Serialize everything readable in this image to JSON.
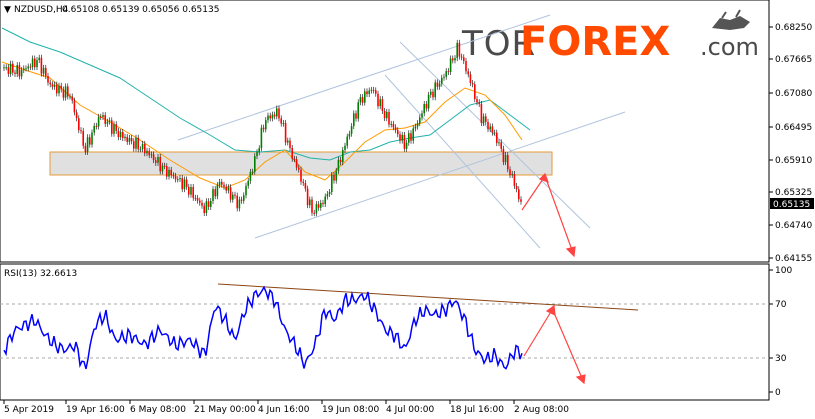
{
  "header": {
    "symbol_text": "NZDUSD,H4",
    "ohlc_text": "0.65108 0.65139 0.65056 0.65135"
  },
  "logo": {
    "part1": "TOR",
    "part2": "FOREX",
    "part3": ".com"
  },
  "price_axis": {
    "ticks": [
      "0.68250",
      "0.67665",
      "0.67080",
      "0.66495",
      "0.65910",
      "0.65325",
      "0.64740",
      "0.64155"
    ],
    "current_label": "0.65135"
  },
  "rsi_panel": {
    "title": "RSI(13) 32.6613",
    "ticks": [
      "100",
      "70",
      "30",
      "0"
    ]
  },
  "time_axis": {
    "ticks": [
      "5 Apr 2019",
      "19 Apr 16:00",
      "6 May 08:00",
      "21 May 00:00",
      "4 Jun 16:00",
      "19 Jun 08:00",
      "4 Jul 00:00",
      "18 Jul 16:00",
      "2 Aug 08:00"
    ]
  },
  "colors": {
    "up_candle": "#008000",
    "down_candle": "#ff0000",
    "ma_fast": "#ff9900",
    "ma_slow": "#20b2aa",
    "channel": "#b0c4de",
    "support_zone": "#e0e0e0",
    "rsi_line": "#0000ff",
    "rsi_trendline": "#8b4513",
    "forecast_arrow": "#ff4444"
  }
}
